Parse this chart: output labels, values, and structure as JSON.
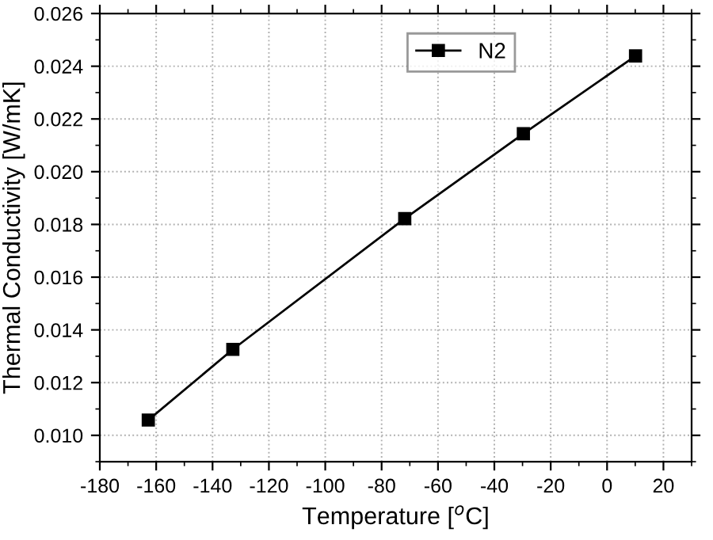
{
  "chart_data": {
    "type": "line",
    "xlabel": "Temperature [$^{o}$C]",
    "ylabel": "Thermal Conductivity [W/mK]",
    "x": [
      -162.8,
      -132.8,
      -71.8,
      -29.7,
      10.1
    ],
    "series": [
      {
        "name": "N2",
        "color": "#000000",
        "values": [
          0.01058,
          0.01326,
          0.01822,
          0.02144,
          0.02439
        ]
      }
    ],
    "xlim": [
      -180,
      30
    ],
    "ylim": [
      0.009,
      0.026
    ],
    "xticks": [
      -180,
      -160,
      -140,
      -120,
      -100,
      -80,
      -60,
      -40,
      -20,
      0,
      20
    ],
    "yticks": [
      {
        "value": 0.01,
        "label": "0.010"
      },
      {
        "value": 0.012,
        "label": "0.012"
      },
      {
        "value": 0.014,
        "label": "0.014"
      },
      {
        "value": 0.016,
        "label": "0.016"
      },
      {
        "value": 0.018,
        "label": "0.018"
      },
      {
        "value": 0.02,
        "label": "0.020"
      },
      {
        "value": 0.022,
        "label": "0.022"
      },
      {
        "value": 0.024,
        "label": "0.024"
      },
      {
        "value": 0.026,
        "label": "0.026"
      }
    ],
    "grid": true,
    "legend": "top right",
    "marker": "square",
    "line_style": "solid"
  }
}
